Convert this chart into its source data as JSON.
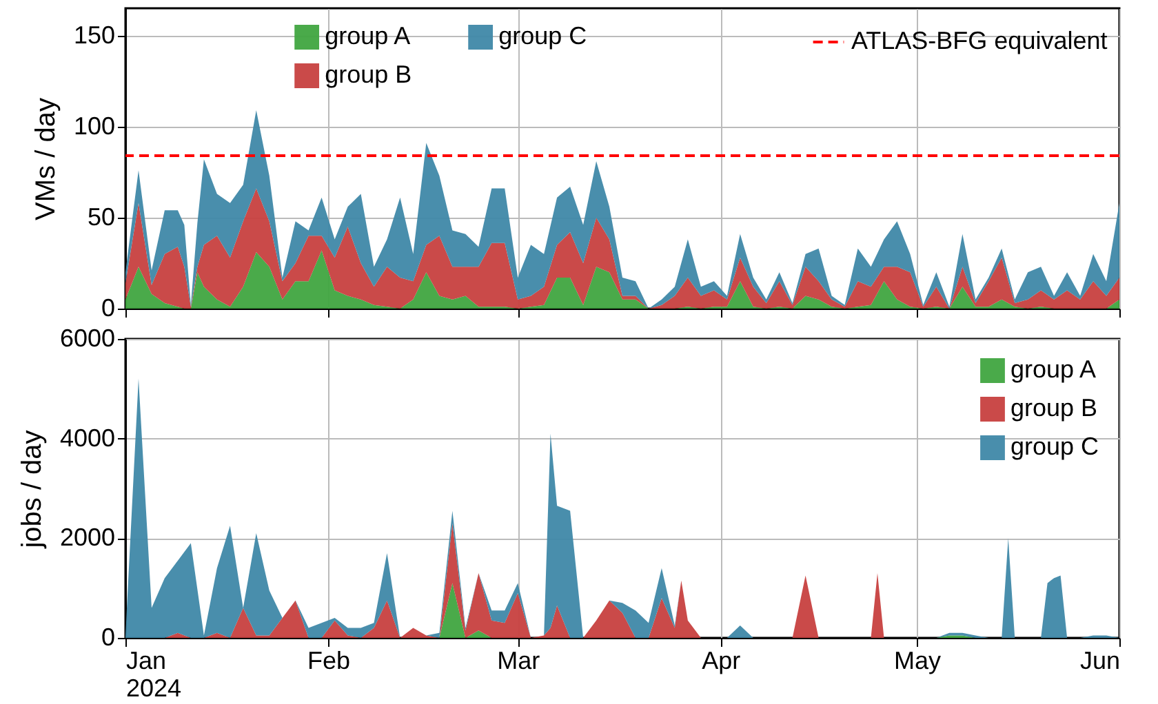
{
  "chart_data": [
    {
      "type": "area",
      "stacked": true,
      "ylabel": "VMs / day",
      "ylim": [
        0,
        165
      ],
      "yticks": [
        0,
        50,
        100,
        150
      ],
      "xlim": [
        "2024-01-01",
        "2024-06-01"
      ],
      "xticks": [
        {
          "value": "2024-01-01",
          "label": null
        },
        {
          "value": "2024-02-01",
          "label": null
        },
        {
          "value": "2024-03-01",
          "label": null
        },
        {
          "value": "2024-04-01",
          "label": null
        },
        {
          "value": "2024-05-01",
          "label": null
        },
        {
          "value": "2024-06-01",
          "label": null
        }
      ],
      "tick_labels": "y",
      "grid": true,
      "legend": "top",
      "x": [
        "2024-01-01",
        "2024-01-03",
        "2024-01-05",
        "2024-01-07",
        "2024-01-09",
        "2024-01-10",
        "2024-01-11",
        "2024-01-12",
        "2024-01-13",
        "2024-01-15",
        "2024-01-17",
        "2024-01-19",
        "2024-01-21",
        "2024-01-23",
        "2024-01-25",
        "2024-01-27",
        "2024-01-29",
        "2024-01-31",
        "2024-02-02",
        "2024-02-04",
        "2024-02-06",
        "2024-02-08",
        "2024-02-10",
        "2024-02-12",
        "2024-02-14",
        "2024-02-16",
        "2024-02-18",
        "2024-02-20",
        "2024-02-22",
        "2024-02-24",
        "2024-02-26",
        "2024-02-28",
        "2024-03-01",
        "2024-03-03",
        "2024-03-05",
        "2024-03-07",
        "2024-03-09",
        "2024-03-11",
        "2024-03-13",
        "2024-03-15",
        "2024-03-17",
        "2024-03-19",
        "2024-03-21",
        "2024-03-23",
        "2024-03-25",
        "2024-03-27",
        "2024-03-29",
        "2024-03-31",
        "2024-04-02",
        "2024-04-04",
        "2024-04-06",
        "2024-04-08",
        "2024-04-10",
        "2024-04-12",
        "2024-04-14",
        "2024-04-16",
        "2024-04-18",
        "2024-04-20",
        "2024-04-22",
        "2024-04-24",
        "2024-04-26",
        "2024-04-28",
        "2024-04-30",
        "2024-05-02",
        "2024-05-04",
        "2024-05-06",
        "2024-05-08",
        "2024-05-10",
        "2024-05-12",
        "2024-05-14",
        "2024-05-16",
        "2024-05-18",
        "2024-05-20",
        "2024-05-22",
        "2024-05-24",
        "2024-05-26",
        "2024-05-28",
        "2024-05-30",
        "2024-06-01"
      ],
      "series": [
        {
          "name": "group A",
          "color": "#40a540",
          "values": [
            5,
            23,
            8,
            3,
            1,
            0,
            0,
            20,
            12,
            5,
            1,
            12,
            31,
            23,
            5,
            15,
            15,
            32,
            10,
            7,
            5,
            2,
            1,
            0,
            5,
            20,
            7,
            5,
            7,
            1,
            1,
            1,
            0,
            1,
            2,
            17,
            17,
            2,
            23,
            20,
            5,
            5,
            0,
            0,
            0,
            1,
            0,
            1,
            1,
            15,
            1,
            0,
            1,
            0,
            7,
            5,
            1,
            0,
            1,
            2,
            15,
            5,
            1,
            0,
            1,
            0,
            12,
            1,
            1,
            5,
            1,
            0,
            1,
            0,
            0,
            0,
            0,
            0,
            5
          ]
        },
        {
          "name": "group B",
          "color": "#c7403f",
          "values": [
            9,
            35,
            5,
            27,
            33,
            23,
            1,
            3,
            23,
            35,
            27,
            36,
            35,
            25,
            10,
            10,
            25,
            8,
            18,
            38,
            20,
            10,
            22,
            17,
            10,
            15,
            33,
            18,
            16,
            22,
            35,
            35,
            5,
            6,
            10,
            18,
            25,
            23,
            27,
            18,
            2,
            2,
            0,
            2,
            7,
            16,
            7,
            9,
            4,
            13,
            11,
            3,
            14,
            2,
            16,
            10,
            4,
            1,
            14,
            10,
            8,
            18,
            19,
            1,
            11,
            0,
            11,
            2,
            14,
            23,
            2,
            5,
            9,
            5,
            10,
            5,
            15,
            7,
            12
          ]
        },
        {
          "name": "group C",
          "color": "#3f88a8",
          "values": [
            6,
            18,
            8,
            24,
            20,
            23,
            1,
            24,
            47,
            23,
            30,
            20,
            43,
            25,
            2,
            23,
            3,
            21,
            10,
            11,
            38,
            11,
            15,
            44,
            15,
            56,
            33,
            20,
            18,
            11,
            30,
            30,
            12,
            28,
            18,
            26,
            25,
            21,
            31,
            18,
            10,
            8,
            0,
            3,
            5,
            21,
            5,
            5,
            2,
            13,
            5,
            2,
            5,
            1,
            7,
            18,
            2,
            1,
            18,
            11,
            15,
            25,
            10,
            1,
            8,
            1,
            18,
            2,
            2,
            5,
            2,
            15,
            13,
            2,
            10,
            2,
            15,
            8,
            41
          ]
        }
      ],
      "ref_lines": [
        {
          "axis": "y",
          "value": 84,
          "label": "ATLAS-BFG equivalent",
          "color": "#ff0000",
          "line_style": "dashed"
        }
      ]
    },
    {
      "type": "area",
      "stacked": true,
      "ylabel": "jobs / day",
      "ylim": [
        0,
        6000
      ],
      "yticks": [
        0,
        2000,
        4000,
        6000
      ],
      "xlim": [
        "2024-01-01",
        "2024-06-01"
      ],
      "xticks": [
        {
          "value": "2024-01-01",
          "label": "Jan 2024"
        },
        {
          "value": "2024-02-01",
          "label": "Feb"
        },
        {
          "value": "2024-03-01",
          "label": "Mar"
        },
        {
          "value": "2024-04-01",
          "label": "Apr"
        },
        {
          "value": "2024-05-01",
          "label": "May"
        },
        {
          "value": "2024-06-01",
          "label": "Jun"
        }
      ],
      "grid": true,
      "legend": "top right",
      "x": [
        "2024-01-01",
        "2024-01-03",
        "2024-01-05",
        "2024-01-07",
        "2024-01-09",
        "2024-01-11",
        "2024-01-13",
        "2024-01-15",
        "2024-01-17",
        "2024-01-19",
        "2024-01-21",
        "2024-01-23",
        "2024-01-25",
        "2024-01-27",
        "2024-01-29",
        "2024-01-31",
        "2024-02-02",
        "2024-02-04",
        "2024-02-06",
        "2024-02-08",
        "2024-02-10",
        "2024-02-12",
        "2024-02-14",
        "2024-02-16",
        "2024-02-18",
        "2024-02-20",
        "2024-02-22",
        "2024-02-24",
        "2024-02-26",
        "2024-02-28",
        "2024-03-01",
        "2024-03-03",
        "2024-03-05",
        "2024-03-06",
        "2024-03-07",
        "2024-03-09",
        "2024-03-11",
        "2024-03-13",
        "2024-03-15",
        "2024-03-17",
        "2024-03-19",
        "2024-03-21",
        "2024-03-23",
        "2024-03-25",
        "2024-03-26",
        "2024-03-27",
        "2024-03-29",
        "2024-03-31",
        "2024-04-02",
        "2024-04-04",
        "2024-04-06",
        "2024-04-08",
        "2024-04-10",
        "2024-04-12",
        "2024-04-14",
        "2024-04-16",
        "2024-04-18",
        "2024-04-20",
        "2024-04-22",
        "2024-04-24",
        "2024-04-25",
        "2024-04-26",
        "2024-04-28",
        "2024-04-30",
        "2024-05-02",
        "2024-05-04",
        "2024-05-06",
        "2024-05-08",
        "2024-05-10",
        "2024-05-12",
        "2024-05-14",
        "2024-05-15",
        "2024-05-16",
        "2024-05-18",
        "2024-05-20",
        "2024-05-21",
        "2024-05-22",
        "2024-05-23",
        "2024-05-24",
        "2024-05-26",
        "2024-05-28",
        "2024-05-30",
        "2024-06-01"
      ],
      "series": [
        {
          "name": "group A",
          "color": "#40a540",
          "values": [
            0,
            0,
            0,
            0,
            0,
            0,
            0,
            0,
            0,
            0,
            0,
            0,
            0,
            0,
            0,
            0,
            0,
            0,
            0,
            0,
            0,
            0,
            0,
            0,
            0,
            1100,
            0,
            150,
            0,
            0,
            0,
            0,
            0,
            0,
            0,
            0,
            0,
            0,
            0,
            0,
            0,
            0,
            0,
            0,
            0,
            0,
            0,
            0,
            0,
            0,
            0,
            0,
            0,
            0,
            0,
            0,
            0,
            0,
            0,
            0,
            0,
            0,
            0,
            0,
            0,
            0,
            50,
            50,
            0,
            0,
            0,
            0,
            0,
            0,
            0,
            0,
            0,
            0,
            0,
            0,
            0,
            0,
            0
          ]
        },
        {
          "name": "group B",
          "color": "#c7403f",
          "values": [
            0,
            0,
            0,
            0,
            100,
            0,
            0,
            100,
            0,
            600,
            50,
            50,
            400,
            750,
            0,
            0,
            350,
            50,
            0,
            200,
            750,
            0,
            200,
            50,
            0,
            1200,
            150,
            1150,
            350,
            300,
            900,
            0,
            50,
            200,
            650,
            0,
            0,
            350,
            750,
            500,
            0,
            0,
            800,
            200,
            1150,
            350,
            0,
            0,
            0,
            0,
            0,
            0,
            0,
            0,
            1250,
            0,
            0,
            0,
            0,
            0,
            1300,
            0,
            0,
            0,
            0,
            0,
            0,
            0,
            0,
            0,
            0,
            0,
            0,
            0,
            0,
            0,
            0,
            0,
            0,
            0,
            0,
            0,
            0
          ]
        },
        {
          "name": "group C",
          "color": "#3f88a8",
          "values": [
            50,
            5200,
            600,
            1200,
            1450,
            1900,
            50,
            1300,
            2250,
            0,
            2050,
            900,
            0,
            0,
            200,
            300,
            50,
            150,
            200,
            100,
            950,
            0,
            0,
            0,
            100,
            250,
            50,
            0,
            200,
            250,
            200,
            0,
            0,
            3900,
            2000,
            2550,
            0,
            0,
            0,
            200,
            550,
            300,
            600,
            50,
            0,
            0,
            0,
            0,
            0,
            250,
            0,
            0,
            0,
            0,
            0,
            0,
            0,
            0,
            0,
            0,
            0,
            0,
            0,
            0,
            0,
            0,
            50,
            50,
            50,
            0,
            0,
            2000,
            0,
            0,
            0,
            1100,
            1200,
            1250,
            0,
            0,
            50,
            50,
            0
          ]
        }
      ]
    }
  ]
}
